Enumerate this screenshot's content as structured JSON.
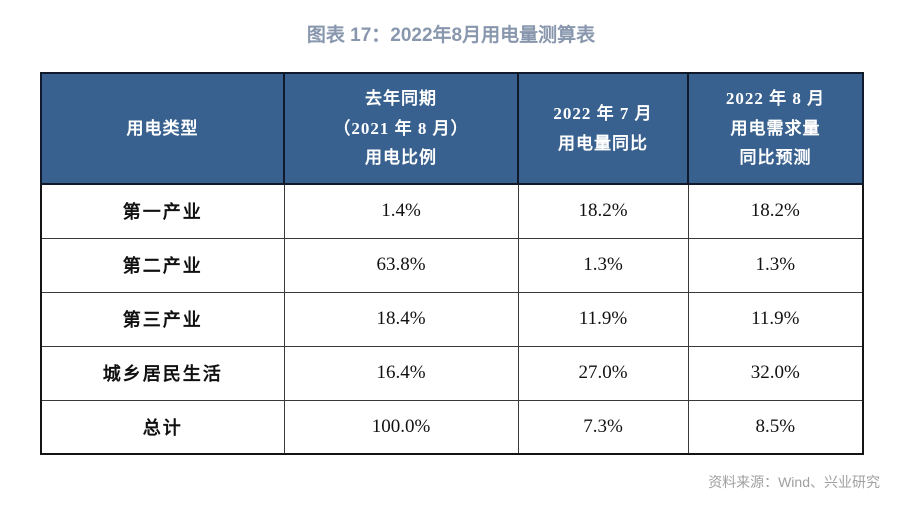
{
  "title": "图表 17：2022年8月用电量测算表",
  "table": {
    "headers": [
      "用电类型",
      "去年同期\n（2021 年 8 月）\n用电比例",
      "2022 年 7 月\n用电量同比",
      "2022 年 8 月\n用电需求量\n同比预测"
    ],
    "rows": [
      {
        "cells": [
          "第一产业",
          "1.4%",
          "18.2%",
          "18.2%"
        ]
      },
      {
        "cells": [
          "第二产业",
          "63.8%",
          "1.3%",
          "1.3%"
        ]
      },
      {
        "cells": [
          "第三产业",
          "18.4%",
          "11.9%",
          "11.9%"
        ]
      },
      {
        "cells": [
          "城乡居民生活",
          "16.4%",
          "27.0%",
          "32.0%"
        ]
      },
      {
        "cells": [
          "总计",
          "100.0%",
          "7.3%",
          "8.5%"
        ]
      }
    ]
  },
  "footer": "资料来源：Wind、兴业研究",
  "colors": {
    "header_bg": "#38618F",
    "header_text": "#FFFFFF",
    "title_text": "#8897AD",
    "footer_text": "#A0A0A0",
    "outer_border": "#141414"
  },
  "chart_data": {
    "type": "table",
    "title": "图表 17：2022年8月用电量测算表",
    "columns": [
      "用电类型",
      "去年同期（2021 年 8 月）用电比例",
      "2022 年 7 月用电量同比",
      "2022 年 8 月用电需求量同比预测"
    ],
    "rows": [
      [
        "第一产业",
        "1.4%",
        "18.2%",
        "18.2%"
      ],
      [
        "第二产业",
        "63.8%",
        "1.3%",
        "1.3%"
      ],
      [
        "第三产业",
        "18.4%",
        "11.9%",
        "11.9%"
      ],
      [
        "城乡居民生活",
        "16.4%",
        "27.0%",
        "32.0%"
      ],
      [
        "总计",
        "100.0%",
        "7.3%",
        "8.5%"
      ]
    ],
    "source": "资料来源：Wind、兴业研究"
  }
}
